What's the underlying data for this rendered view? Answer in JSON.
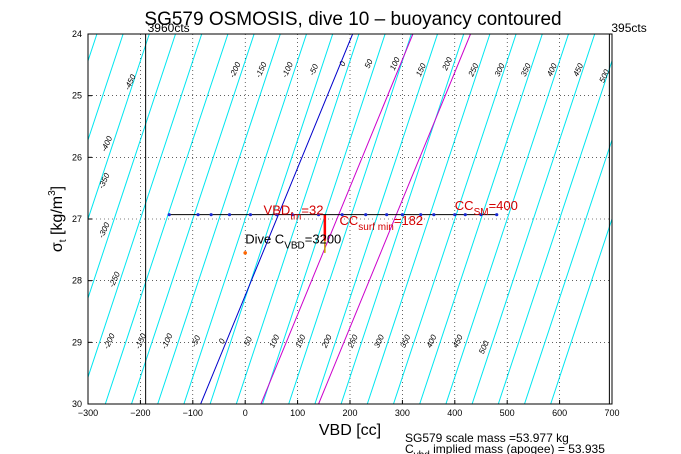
{
  "chart_data": {
    "type": "line",
    "title": "SG579 OSMOSIS, dive 10 – buoyancy contoured",
    "xlabel": "VBD [cc]",
    "ylabel": {
      "main": "σ",
      "sub": "t",
      "rest": " [kg/m",
      "sup": "3",
      "end": "]"
    },
    "xlim": [
      -300,
      700
    ],
    "ylim": [
      24,
      30
    ],
    "y_reversed": true,
    "grid": true,
    "x_ticks": [
      -300,
      -200,
      -100,
      0,
      100,
      200,
      300,
      400,
      500,
      600,
      700
    ],
    "x_tick_labels": [
      "−300",
      "−200",
      "−100",
      "0",
      "100",
      "200",
      "300",
      "400",
      "500",
      "600",
      "700"
    ],
    "y_ticks": [
      24,
      25,
      26,
      27,
      28,
      29,
      30
    ],
    "y_tick_labels": [
      "24",
      "25",
      "26",
      "27",
      "28",
      "29",
      "30"
    ],
    "contour_lines": {
      "color": "#00e6f0",
      "slope_vbd_per_sigma": -39,
      "x_at_sigma27": [
        -750,
        -700,
        -650,
        -600,
        -550,
        -500,
        -450,
        -400,
        -350,
        -300,
        -250,
        -200,
        -150,
        -100,
        -50,
        0,
        50,
        100,
        150,
        200,
        250,
        300,
        350,
        400,
        450,
        500,
        550,
        600,
        650,
        700
      ]
    },
    "contour_labels": [
      {
        "text": "-450",
        "x": -215,
        "y": 24.8
      },
      {
        "text": "-400",
        "x": -260,
        "y": 25.8
      },
      {
        "text": "-350",
        "x": -265,
        "y": 26.4
      },
      {
        "text": "-300",
        "x": -265,
        "y": 27.2
      },
      {
        "text": "-250",
        "x": -245,
        "y": 28.0
      },
      {
        "text": "-200",
        "x": -255,
        "y": 29.0
      },
      {
        "text": "-150",
        "x": -195,
        "y": 29.0
      },
      {
        "text": "-100",
        "x": -145,
        "y": 29.0
      },
      {
        "text": "-50",
        "x": -90,
        "y": 29.0
      },
      {
        "text": "0",
        "x": -40,
        "y": 29.0
      },
      {
        "text": "50",
        "x": 10,
        "y": 29.0
      },
      {
        "text": "100",
        "x": 60,
        "y": 29.0
      },
      {
        "text": "150",
        "x": 110,
        "y": 29.0
      },
      {
        "text": "200",
        "x": 160,
        "y": 29.0
      },
      {
        "text": "250",
        "x": 210,
        "y": 29.0
      },
      {
        "text": "300",
        "x": 260,
        "y": 29.0
      },
      {
        "text": "350",
        "x": 310,
        "y": 29.0
      },
      {
        "text": "400",
        "x": 360,
        "y": 29.0
      },
      {
        "text": "450",
        "x": 410,
        "y": 29.0
      },
      {
        "text": "500",
        "x": 460,
        "y": 29.1
      },
      {
        "text": "-200",
        "x": -15,
        "y": 24.6
      },
      {
        "text": "-150",
        "x": 35,
        "y": 24.6
      },
      {
        "text": "-100",
        "x": 85,
        "y": 24.6
      },
      {
        "text": "-50",
        "x": 135,
        "y": 24.6
      },
      {
        "text": "0",
        "x": 190,
        "y": 24.5
      },
      {
        "text": "50",
        "x": 240,
        "y": 24.5
      },
      {
        "text": "100",
        "x": 290,
        "y": 24.5
      },
      {
        "text": "150",
        "x": 340,
        "y": 24.6
      },
      {
        "text": "200",
        "x": 390,
        "y": 24.5
      },
      {
        "text": "250",
        "x": 440,
        "y": 24.6
      },
      {
        "text": "300",
        "x": 490,
        "y": 24.6
      },
      {
        "text": "350",
        "x": 540,
        "y": 24.6
      },
      {
        "text": "400",
        "x": 590,
        "y": 24.6
      },
      {
        "text": "450",
        "x": 640,
        "y": 24.6
      },
      {
        "text": "500",
        "x": 690,
        "y": 24.7
      }
    ],
    "highlight_lines": [
      {
        "color": "#0000cc",
        "x_at_sigma24": 205,
        "x_at_sigma30": -85
      },
      {
        "color": "#cc00cc",
        "x_at_sigma24": 320,
        "x_at_sigma30": 30
      },
      {
        "color": "#cc00cc",
        "x_at_sigma24": 430,
        "x_at_sigma30": 140
      }
    ],
    "vertical_lines": [
      {
        "x": -190,
        "label": "3960cts"
      },
      {
        "x": 695,
        "label": "395cts"
      }
    ],
    "series": [
      {
        "line_color": "#000000",
        "marker_color": "#1a2bd6",
        "x": [
          -145,
          -90,
          -65,
          -30,
          10,
          60,
          90,
          140,
          185,
          230,
          270,
          300,
          335,
          360,
          400,
          420,
          450,
          480
        ],
        "y": [
          26.93,
          26.93,
          26.93,
          26.93,
          26.93,
          26.93,
          26.93,
          26.93,
          26.93,
          26.93,
          26.93,
          26.93,
          26.93,
          26.93,
          26.93,
          26.93,
          26.93,
          26.93
        ]
      }
    ],
    "dive_box": {
      "x_min": -145,
      "x_max": 152,
      "y_top": 26.93,
      "y_bottom": 27.55,
      "mark_x": 0,
      "mark_y": 27.55
    },
    "vertical_markers": [
      {
        "x": 152,
        "y_top": 26.93,
        "y_bottom": 27.35,
        "color": "#ff0000"
      }
    ],
    "annotations": [
      {
        "main": "VBD",
        "sub": "fm",
        "rest": "=32",
        "color": "#d40000",
        "x": 35,
        "y": 26.93
      },
      {
        "main": "CC",
        "sub": "surf min",
        "rest": "=182",
        "color": "#d40000",
        "x": 180,
        "y": 27.1
      },
      {
        "main": "CC",
        "sub": "SM",
        "rest": "=400",
        "color": "#d40000",
        "x": 400,
        "y": 26.85
      },
      {
        "main": "Dive C",
        "sub": "VBD",
        "rest": "=3200",
        "color": "#000000",
        "x": 0,
        "y": 27.4
      }
    ],
    "footer": [
      {
        "main": "SG579 scale mass =53.977 kg"
      },
      {
        "main": "C",
        "sub": "vbd",
        "rest": " implied mass (apogee) = 53.935"
      }
    ]
  }
}
